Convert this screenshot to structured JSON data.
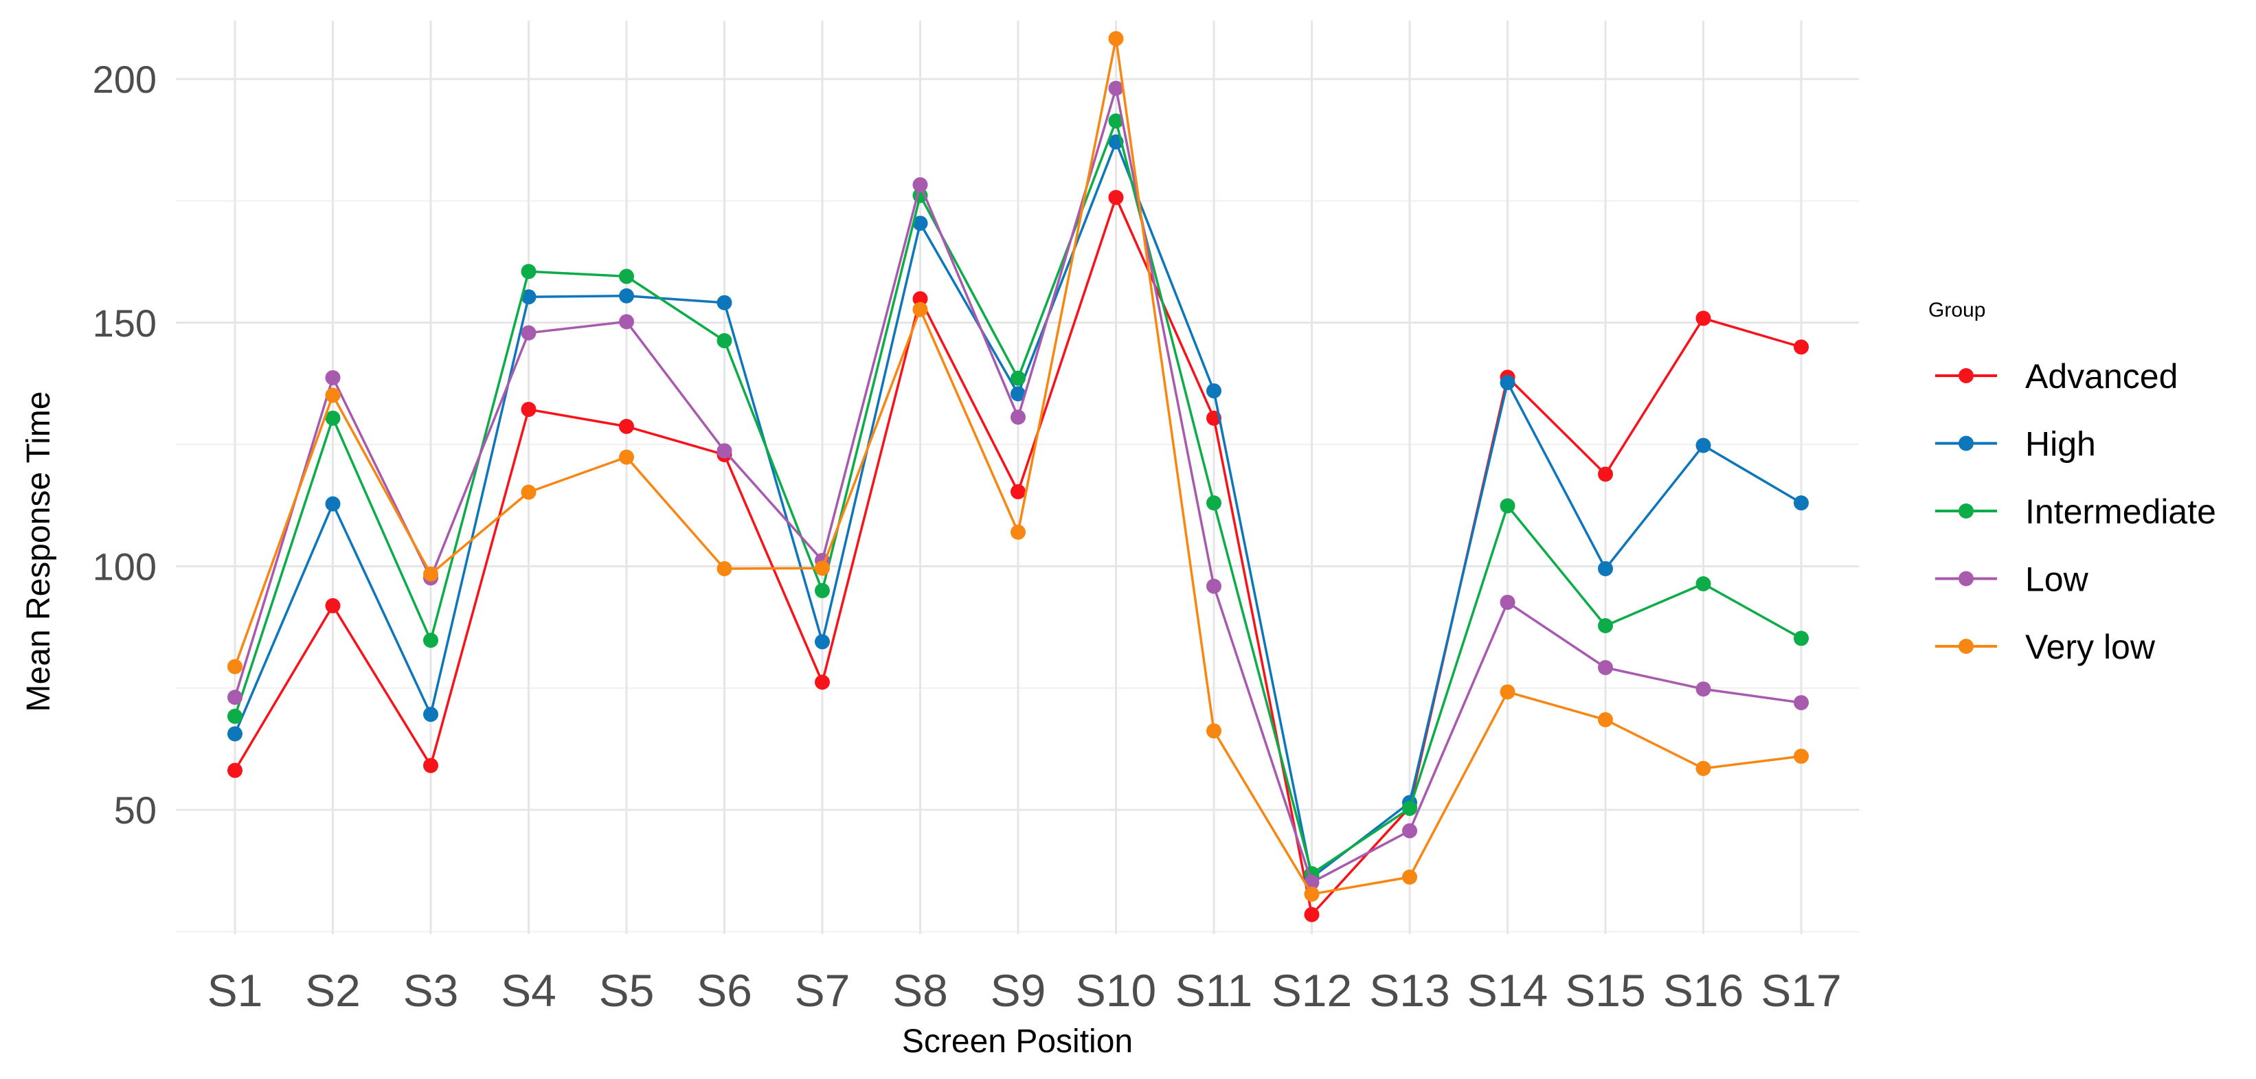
{
  "chart_data": {
    "type": "line",
    "xlabel": "Screen Position",
    "ylabel": "Mean Response Time",
    "categories": [
      "S1",
      "S2",
      "S3",
      "S4",
      "S5",
      "S6",
      "S7",
      "S8",
      "S9",
      "S10",
      "S11",
      "S12",
      "S13",
      "S14",
      "S15",
      "S16",
      "S17"
    ],
    "ylim": [
      24.5,
      212
    ],
    "yticks": [
      50,
      100,
      150,
      200
    ],
    "grid": true,
    "legend": {
      "title": "Group",
      "position": "right"
    },
    "series": [
      {
        "name": "Advanced",
        "color": "#F8131A",
        "values": [
          58.1,
          91.9,
          59.1,
          132.2,
          128.7,
          122.9,
          76.2,
          154.9,
          115.3,
          175.7,
          130.4,
          28.5,
          50.5,
          138.8,
          118.9,
          150.9,
          145.0
        ]
      },
      {
        "name": "High",
        "color": "#0E76BB",
        "values": [
          65.6,
          112.8,
          69.6,
          155.3,
          155.5,
          154.1,
          84.5,
          170.4,
          135.4,
          187.1,
          136.0,
          36.1,
          51.5,
          137.7,
          99.5,
          124.8,
          113.0
        ]
      },
      {
        "name": "Intermediate",
        "color": "#0CAD48",
        "values": [
          69.2,
          130.4,
          84.8,
          160.5,
          159.5,
          146.3,
          95.0,
          176.1,
          138.6,
          191.4,
          113.0,
          36.9,
          50.3,
          112.4,
          87.8,
          96.4,
          85.2
        ]
      },
      {
        "name": "Low",
        "color": "#A85AAF",
        "values": [
          73.1,
          138.7,
          97.6,
          147.9,
          150.2,
          123.7,
          101.2,
          178.3,
          130.6,
          198.1,
          95.9,
          35.1,
          45.7,
          92.6,
          79.2,
          74.8,
          72.0
        ]
      },
      {
        "name": "Very low",
        "color": "#F88712",
        "values": [
          79.4,
          135.1,
          98.4,
          115.2,
          122.4,
          99.5,
          99.6,
          152.7,
          107.0,
          208.3,
          66.2,
          32.7,
          36.2,
          74.2,
          68.5,
          58.5,
          61.0
        ]
      }
    ]
  }
}
